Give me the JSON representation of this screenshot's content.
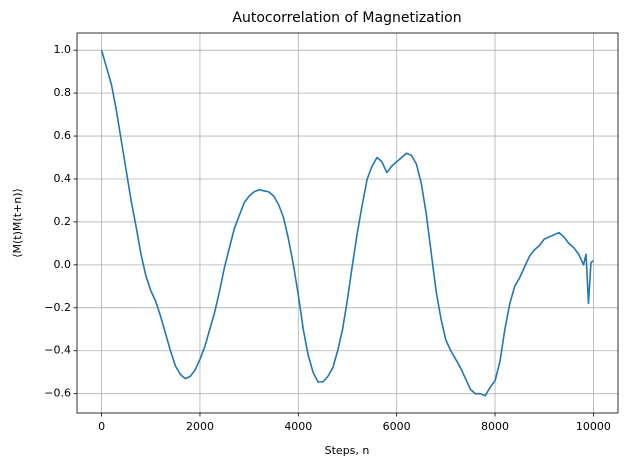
{
  "chart_data": {
    "type": "line",
    "title": "Autocorrelation of Magnetization",
    "x_label": "Steps, n",
    "y_label": "⟨M(t)M(t+n)⟩",
    "x": [
      0,
      100,
      200,
      300,
      400,
      500,
      600,
      700,
      800,
      900,
      1000,
      1100,
      1200,
      1300,
      1400,
      1500,
      1600,
      1700,
      1800,
      1900,
      2000,
      2100,
      2200,
      2300,
      2400,
      2500,
      2600,
      2700,
      2800,
      2900,
      3000,
      3100,
      3200,
      3300,
      3400,
      3500,
      3600,
      3700,
      3800,
      3900,
      4000,
      4100,
      4200,
      4300,
      4400,
      4500,
      4600,
      4700,
      4800,
      4900,
      5000,
      5100,
      5200,
      5300,
      5400,
      5500,
      5600,
      5700,
      5800,
      5900,
      6000,
      6100,
      6200,
      6300,
      6400,
      6500,
      6600,
      6700,
      6800,
      6900,
      7000,
      7100,
      7200,
      7300,
      7400,
      7500,
      7600,
      7700,
      7800,
      7900,
      8000,
      8100,
      8200,
      8300,
      8400,
      8500,
      8600,
      8700,
      8800,
      8900,
      9000,
      9100,
      9200,
      9300,
      9400,
      9500,
      9600,
      9700,
      9800,
      9850,
      9900,
      9950,
      10000
    ],
    "series": [
      {
        "name": "autocorrelation",
        "color": "#1f77b4",
        "values": [
          1.0,
          0.92,
          0.84,
          0.72,
          0.58,
          0.44,
          0.3,
          0.18,
          0.05,
          -0.05,
          -0.12,
          -0.17,
          -0.24,
          -0.32,
          -0.4,
          -0.47,
          -0.51,
          -0.53,
          -0.52,
          -0.49,
          -0.44,
          -0.38,
          -0.3,
          -0.22,
          -0.12,
          -0.01,
          0.08,
          0.17,
          0.23,
          0.29,
          0.32,
          0.34,
          0.35,
          0.345,
          0.34,
          0.32,
          0.28,
          0.22,
          0.12,
          0.0,
          -0.14,
          -0.3,
          -0.42,
          -0.5,
          -0.545,
          -0.545,
          -0.52,
          -0.48,
          -0.4,
          -0.3,
          -0.16,
          0.0,
          0.15,
          0.28,
          0.4,
          0.46,
          0.5,
          0.48,
          0.43,
          0.46,
          0.48,
          0.5,
          0.52,
          0.51,
          0.47,
          0.38,
          0.24,
          0.06,
          -0.12,
          -0.25,
          -0.35,
          -0.4,
          -0.44,
          -0.48,
          -0.53,
          -0.58,
          -0.6,
          -0.6,
          -0.61,
          -0.57,
          -0.54,
          -0.45,
          -0.3,
          -0.18,
          -0.1,
          -0.06,
          -0.01,
          0.04,
          0.07,
          0.09,
          0.12,
          0.13,
          0.14,
          0.15,
          0.13,
          0.1,
          0.08,
          0.05,
          0.0,
          0.05,
          -0.18,
          0.01,
          0.02
        ]
      }
    ],
    "xlim": [
      -500,
      10500
    ],
    "ylim": [
      -0.69,
      1.08
    ],
    "xticks": [
      0,
      2000,
      4000,
      6000,
      8000,
      10000
    ],
    "yticks": [
      {
        "value": -0.6,
        "label": "−0.6"
      },
      {
        "value": -0.4,
        "label": "−0.4"
      },
      {
        "value": -0.2,
        "label": "−0.2"
      },
      {
        "value": 0,
        "label": "0.0"
      },
      0.2,
      0.4,
      0.6,
      0.8,
      {
        "value": 1,
        "label": "1.0"
      }
    ],
    "grid": true
  }
}
